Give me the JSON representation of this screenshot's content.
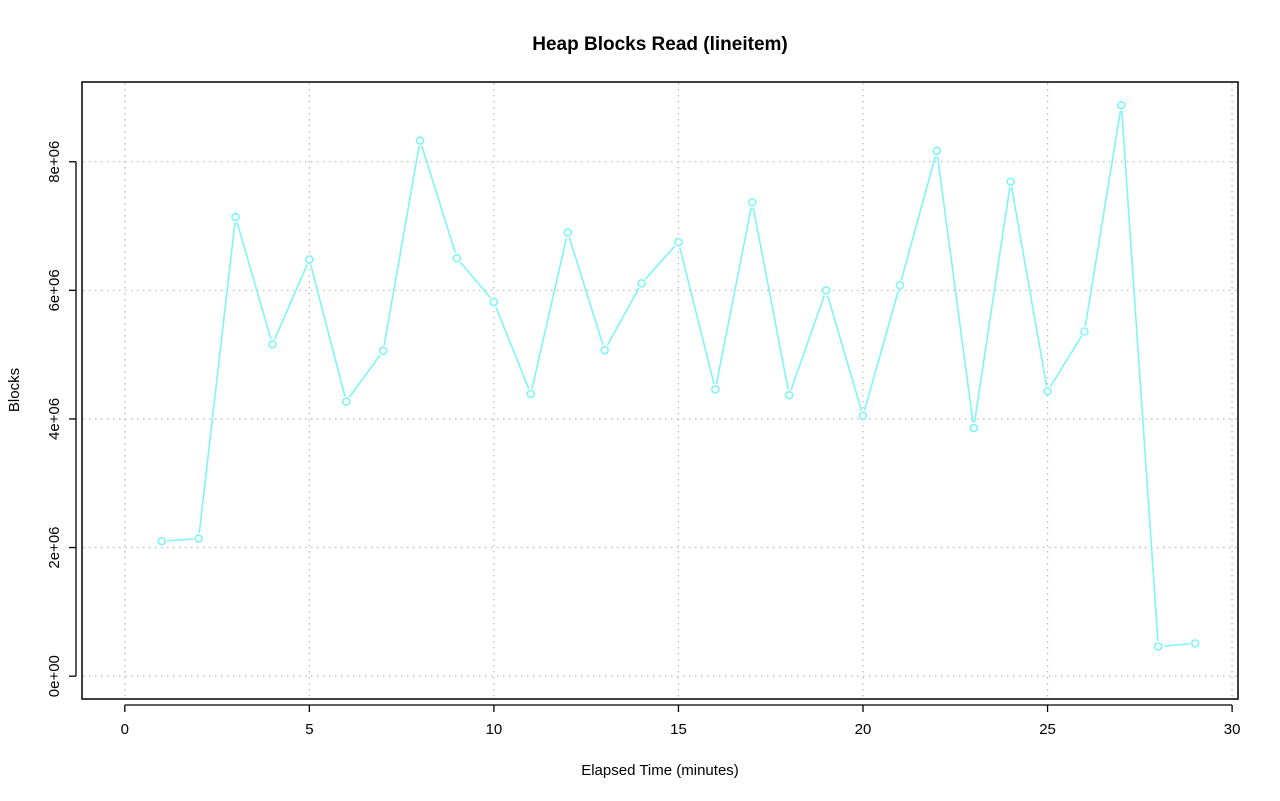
{
  "chart_data": {
    "type": "line",
    "title": "Heap Blocks Read (lineitem)",
    "xlabel": "Elapsed Time (minutes)",
    "ylabel": "Blocks",
    "x_ticks": [
      0,
      5,
      10,
      15,
      20,
      25,
      30
    ],
    "x_tick_labels": [
      "0",
      "5",
      "10",
      "15",
      "20",
      "25",
      "30"
    ],
    "y_ticks": [
      0,
      2000000,
      4000000,
      6000000,
      8000000
    ],
    "y_tick_labels": [
      "0e+00",
      "2e+06",
      "4e+06",
      "6e+06",
      "8e+06"
    ],
    "xlim": [
      -1.16,
      30.16
    ],
    "ylim": [
      -355000,
      9240000
    ],
    "grid": true,
    "series": [
      {
        "color": "#7ff5f5",
        "marker": "circle",
        "x": [
          1,
          2,
          3,
          4,
          5,
          6,
          7,
          8,
          9,
          10,
          11,
          12,
          13,
          14,
          15,
          16,
          17,
          18,
          19,
          20,
          21,
          22,
          23,
          24,
          25,
          26,
          27,
          28,
          29
        ],
        "values": [
          2100000,
          2140000,
          7140000,
          5160000,
          6480000,
          4270000,
          5060000,
          8330000,
          6500000,
          5820000,
          4390000,
          6900000,
          5070000,
          6110000,
          6750000,
          4460000,
          7370000,
          4370000,
          6000000,
          4050000,
          6080000,
          8170000,
          3860000,
          7690000,
          4430000,
          5360000,
          8880000,
          460000,
          510000
        ]
      }
    ]
  }
}
